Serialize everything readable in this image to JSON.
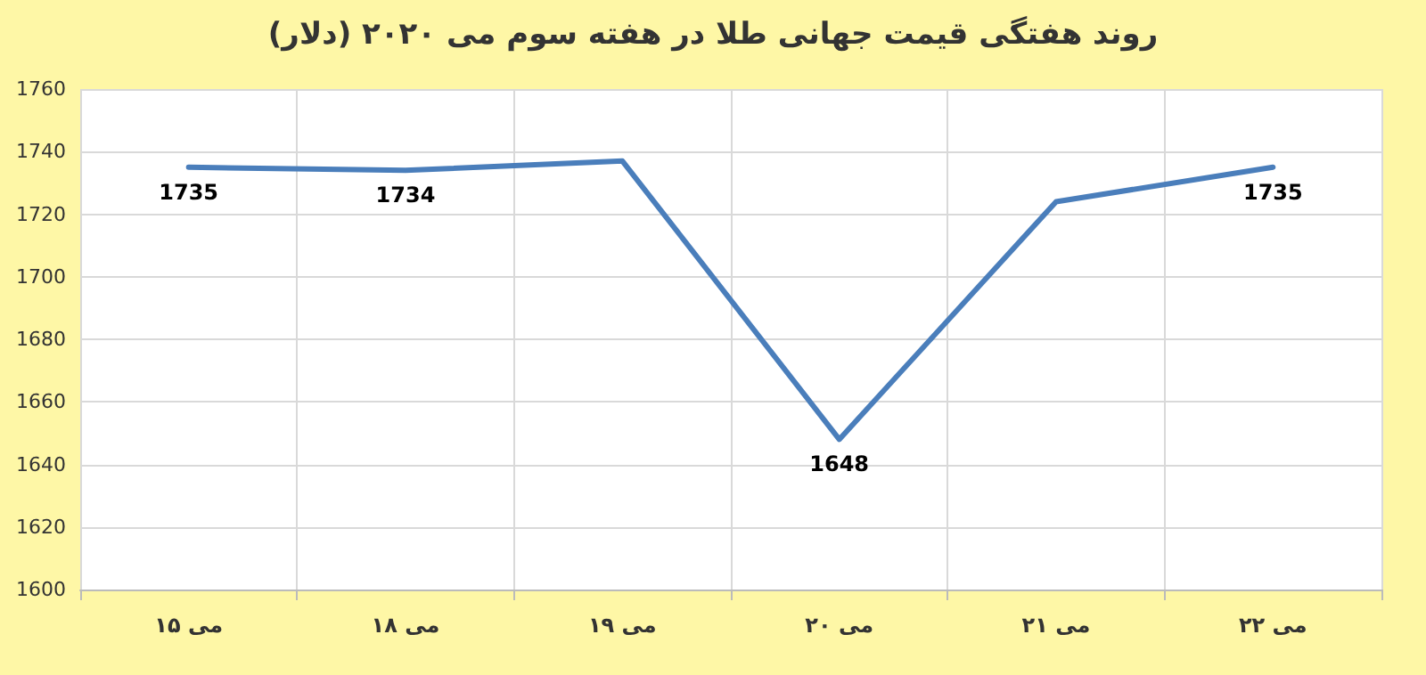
{
  "chart_data": {
    "type": "line",
    "title": "روند هفتگی قیمت جهانی طلا در هفته سوم می ۲۰۲۰ (دلار)",
    "categories": [
      "۱۵ می",
      "۱۸ می",
      "۱۹ می",
      "۲۰ می",
      "۲۱ می",
      "۲۲ می"
    ],
    "series": [
      {
        "color": "#4a7ebb",
        "values": [
          1735,
          1734,
          1737,
          1648,
          1724,
          1735
        ],
        "value_labels": [
          "1735",
          "1734",
          null,
          "1648",
          null,
          "1735"
        ]
      }
    ],
    "ylim": [
      1600,
      1760
    ],
    "yticks": [
      1600,
      1620,
      1640,
      1660,
      1680,
      1700,
      1720,
      1740,
      1760
    ],
    "grid": true,
    "marker": "none",
    "line_style": "solid"
  }
}
